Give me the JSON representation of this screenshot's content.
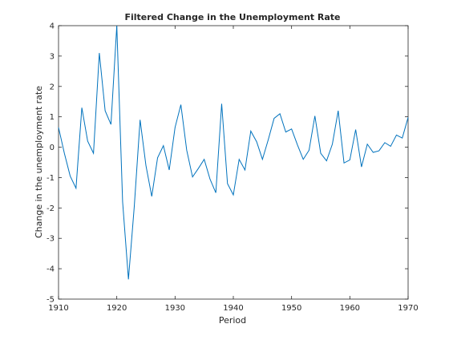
{
  "chart_data": {
    "type": "line",
    "title": "Filtered Change in the Unemployment Rate",
    "xlabel": "Period",
    "ylabel": "Change in the unemployment rate",
    "xlim": [
      1910,
      1970
    ],
    "ylim": [
      -5,
      4
    ],
    "xticks": [
      1910,
      1920,
      1930,
      1940,
      1950,
      1960,
      1970
    ],
    "yticks": [
      -5,
      -4,
      -3,
      -2,
      -1,
      0,
      1,
      2,
      3,
      4
    ],
    "grid": false,
    "line_color": "#0072BD",
    "series": [
      {
        "x": [
          1910,
          1911,
          1912,
          1913,
          1914,
          1915,
          1916,
          1917,
          1918,
          1919,
          1920,
          1921,
          1922,
          1923,
          1924,
          1925,
          1926,
          1927,
          1928,
          1929,
          1930,
          1931,
          1932,
          1933,
          1934,
          1935,
          1936,
          1937,
          1938,
          1939,
          1940,
          1941,
          1942,
          1943,
          1944,
          1945,
          1946,
          1947,
          1948,
          1949,
          1950,
          1951,
          1952,
          1953,
          1954,
          1955,
          1956,
          1957,
          1958,
          1959,
          1960,
          1961,
          1962,
          1963,
          1964,
          1965,
          1966,
          1967,
          1968,
          1969,
          1970
        ],
        "y": [
          0.65,
          -0.2,
          -0.95,
          -1.35,
          1.3,
          0.2,
          -0.2,
          3.1,
          1.2,
          0.75,
          4.0,
          -1.8,
          -4.35,
          -1.95,
          0.9,
          -0.6,
          -1.62,
          -0.35,
          0.05,
          -0.75,
          0.65,
          1.4,
          -0.1,
          -0.98,
          -0.7,
          -0.4,
          -1.05,
          -1.5,
          1.43,
          -1.2,
          -1.57,
          -0.4,
          -0.75,
          0.53,
          0.18,
          -0.4,
          0.25,
          0.95,
          1.1,
          0.5,
          0.6,
          0.08,
          -0.4,
          -0.1,
          1.03,
          -0.2,
          -0.45,
          0.1,
          1.2,
          -0.52,
          -0.42,
          0.58,
          -0.65,
          0.1,
          -0.17,
          -0.12,
          0.15,
          0.03,
          0.4,
          0.3,
          0.98
        ]
      }
    ]
  }
}
